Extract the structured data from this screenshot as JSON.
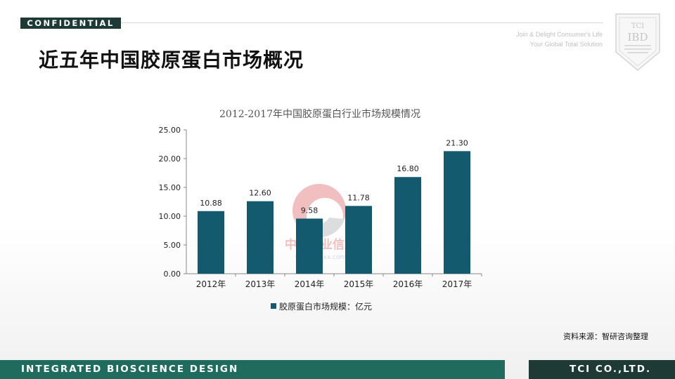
{
  "header": {
    "confidential": "CONFIDENTIAL",
    "tagline_line1": "Join & Delight Consumer's Life",
    "tagline_line2": "Your Global Total Solution"
  },
  "logo": {
    "line1": "TCI",
    "line2": "IBD"
  },
  "slide": {
    "title": "近五年中国胶原蛋白市场概况"
  },
  "chart_data": {
    "type": "bar",
    "title": "2012-2017年中国胶原蛋白行业市场规模情况",
    "categories": [
      "2012年",
      "2013年",
      "2014年",
      "2015年",
      "2016年",
      "2017年"
    ],
    "series": [
      {
        "name": "胶原蛋白市场规模：亿元",
        "values": [
          10.88,
          12.6,
          9.58,
          11.78,
          16.8,
          21.3
        ]
      }
    ],
    "value_labels": [
      "10.88",
      "12.60",
      "9.58",
      "11.78",
      "16.80",
      "21.30"
    ],
    "yticks": [
      "0.00",
      "5.00",
      "10.00",
      "15.00",
      "20.00",
      "25.00"
    ],
    "ylim": [
      0,
      25
    ],
    "bar_color": "#145a6e",
    "legend_position": "bottom",
    "grid": false
  },
  "watermark": {
    "text": "中国产业信息",
    "url": "www.chyxx.com"
  },
  "source": "资料来源：智研咨询整理",
  "footer": {
    "left": "INTEGRATED BIOSCIENCE DESIGN",
    "right": "TCI CO.,LTD."
  },
  "colors": {
    "dark_green": "#1d3b34",
    "footer_green": "#1f6c5e",
    "bar": "#145a6e"
  }
}
